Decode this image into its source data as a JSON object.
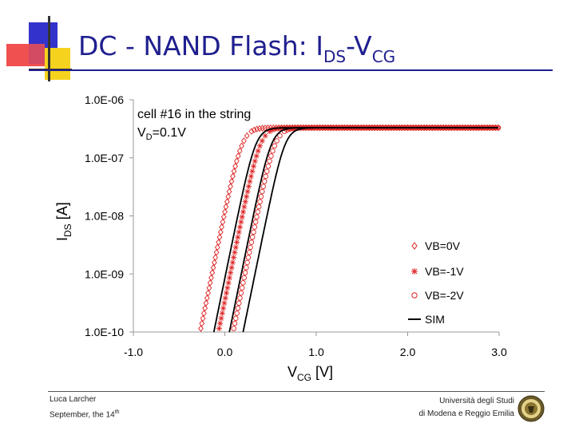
{
  "slide": {
    "title_main": "DC - NAND Flash: I",
    "title_sub1": "DS",
    "title_dash": "-V",
    "title_sub2": "CG",
    "footer_left_line1": "Luca Larcher",
    "footer_left_line2": "September, the 14",
    "footer_left_sup": "th",
    "footer_right_line1": "Università degli Studi",
    "footer_right_line2": "di Modena e Reggio Emilia"
  },
  "colors": {
    "title": "#1f1f8f",
    "logo_red": "#f05050",
    "logo_blue": "#3333cc",
    "logo_yellow": "#f5d21e",
    "marker_red": "#dd2222",
    "sim_line": "#000000"
  },
  "chart_data": {
    "type": "scatter",
    "x_label_main": "V",
    "x_label_sub": "CG",
    "x_label_unit": " [V]",
    "y_label_main": "I",
    "y_label_sub": "DS",
    "y_label_unit": " [A]",
    "x_ticks": [
      "-1.0",
      "0.0",
      "1.0",
      "2.0",
      "3.0"
    ],
    "y_ticks": [
      "1.0E-10",
      "1.0E-09",
      "1.0E-08",
      "1.0E-07",
      "1.0E-06"
    ],
    "xlim": [
      -1.0,
      3.0
    ],
    "ylim": [
      1e-10,
      1e-06
    ],
    "y_scale": "log",
    "grid": false,
    "legend_position": "bottom-right",
    "annotation_line1": "cell #16 in the string",
    "annotation_line2_main": "V",
    "annotation_line2_sub": "D",
    "annotation_line2_rest": "=0.1V",
    "series": [
      {
        "name": "VB=0V",
        "marker": "diamond",
        "vth": -0.27
      },
      {
        "name": "VB=-1V",
        "marker": "asterisk",
        "vth": -0.07
      },
      {
        "name": "VB=-2V",
        "marker": "circle",
        "vth": 0.09
      },
      {
        "name": "SIM",
        "marker": "line",
        "vths": [
          -0.12,
          0.05,
          0.2
        ]
      }
    ],
    "curve_model": {
      "i_min": 1e-10,
      "i_sat": 3.3e-07,
      "subthreshold_decades_per_volt": 7.7
    }
  }
}
